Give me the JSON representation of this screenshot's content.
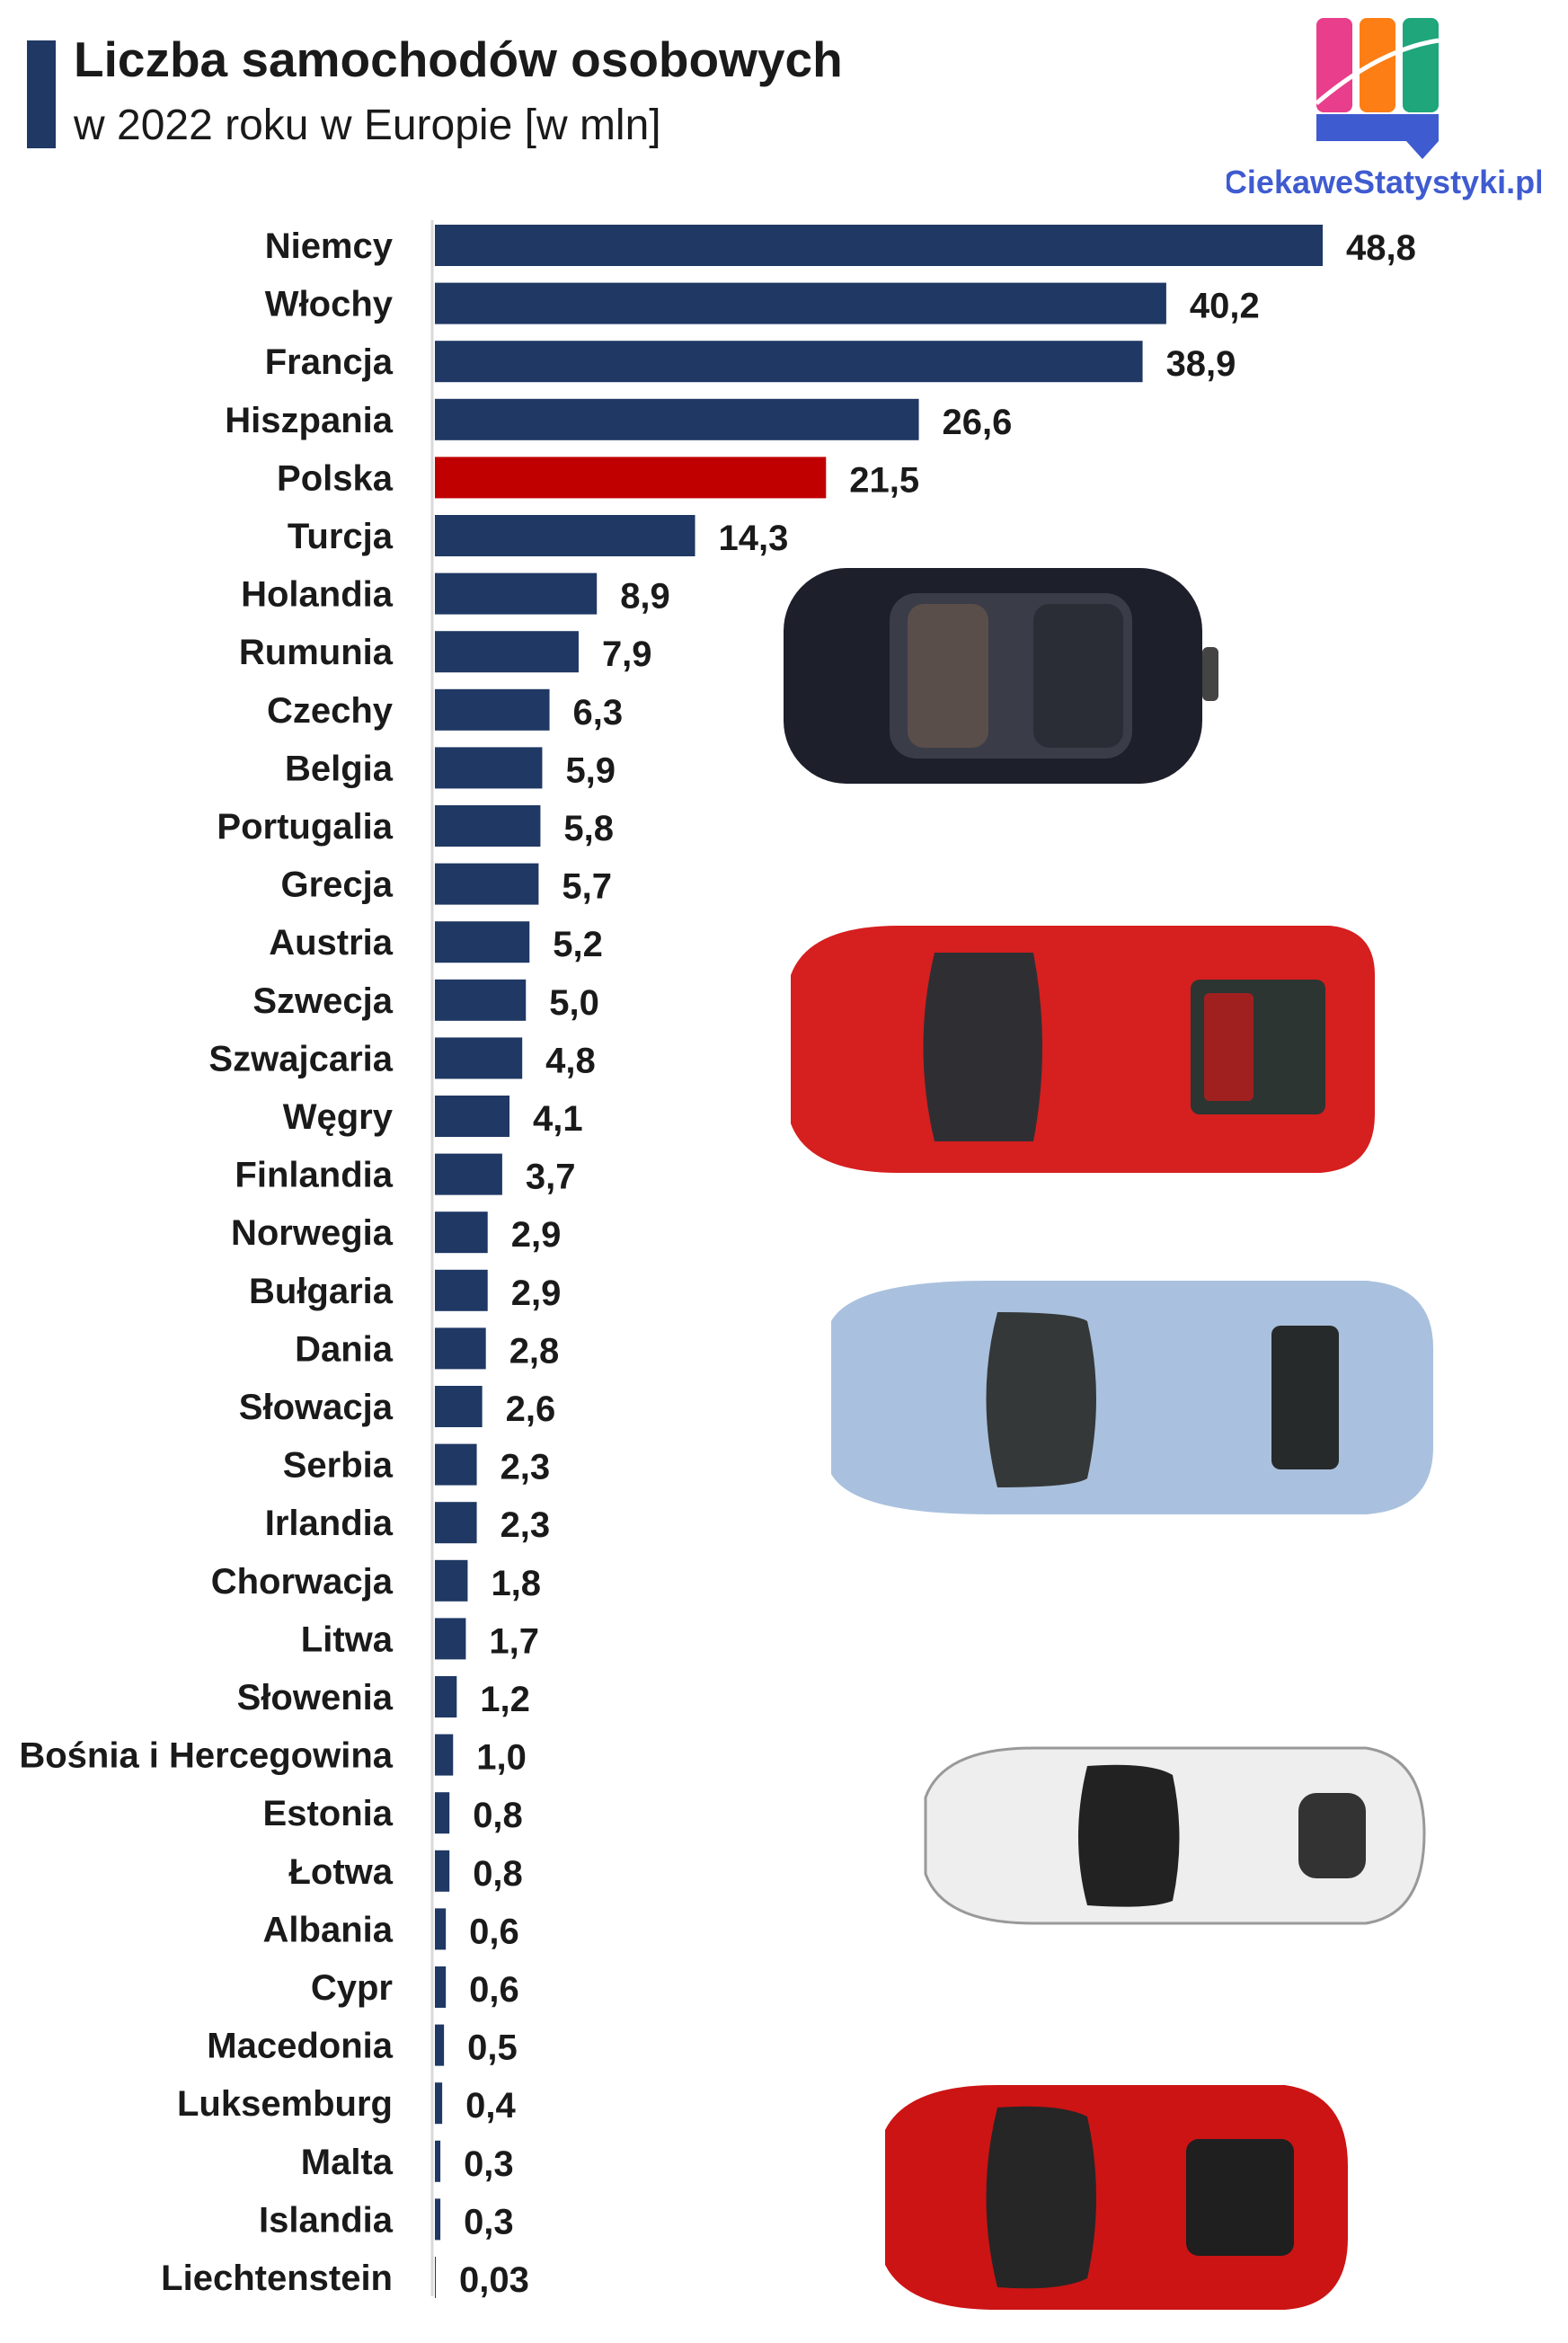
{
  "header": {
    "title": "Liczba samochodów osobowych",
    "subtitle": "w 2022 roku w Europie [w mln]"
  },
  "logo": {
    "text": "CiekaweStatystyki.pl"
  },
  "colors": {
    "bar": "#1f3864",
    "highlight": "#c00000",
    "text": "#1a1a1a",
    "axis": "#d9d9d9"
  },
  "chart_data": {
    "type": "bar",
    "orientation": "horizontal",
    "categories": [
      "Niemcy",
      "Włochy",
      "Francja",
      "Hiszpania",
      "Polska",
      "Turcja",
      "Holandia",
      "Rumunia",
      "Czechy",
      "Belgia",
      "Portugalia",
      "Grecja",
      "Austria",
      "Szwecja",
      "Szwajcaria",
      "Węgry",
      "Finlandia",
      "Norwegia",
      "Bułgaria",
      "Dania",
      "Słowacja",
      "Serbia",
      "Irlandia",
      "Chorwacja",
      "Litwa",
      "Słowenia",
      "Bośnia i Hercegowina",
      "Estonia",
      "Łotwa",
      "Albania",
      "Cypr",
      "Macedonia",
      "Luksemburg",
      "Malta",
      "Islandia",
      "Liechtenstein"
    ],
    "values": [
      48.8,
      40.2,
      38.9,
      26.6,
      21.5,
      14.3,
      8.9,
      7.9,
      6.3,
      5.9,
      5.8,
      5.7,
      5.2,
      5.0,
      4.8,
      4.1,
      3.7,
      2.9,
      2.9,
      2.8,
      2.6,
      2.3,
      2.3,
      1.8,
      1.7,
      1.2,
      1.0,
      0.8,
      0.8,
      0.6,
      0.6,
      0.5,
      0.4,
      0.3,
      0.3,
      0.03
    ],
    "labels": [
      "48,8",
      "40,2",
      "38,9",
      "26,6",
      "21,5",
      "14,3",
      "8,9",
      "7,9",
      "6,3",
      "5,9",
      "5,8",
      "5,7",
      "5,2",
      "5,0",
      "4,8",
      "4,1",
      "3,7",
      "2,9",
      "2,9",
      "2,8",
      "2,6",
      "2,3",
      "2,3",
      "1,8",
      "1,7",
      "1,2",
      "1,0",
      "0,8",
      "0,8",
      "0,6",
      "0,6",
      "0,5",
      "0,4",
      "0,3",
      "0,3",
      "0,03"
    ],
    "highlight": "Polska",
    "xlim": [
      0,
      48.8
    ],
    "grid": false,
    "legend": "none"
  },
  "decorations": {
    "cars": [
      "dark-suv-car-icon",
      "red-sports-car-icon",
      "silver-coupe-car-icon",
      "white-sports-car-icon",
      "red-supercar-car-icon"
    ]
  }
}
